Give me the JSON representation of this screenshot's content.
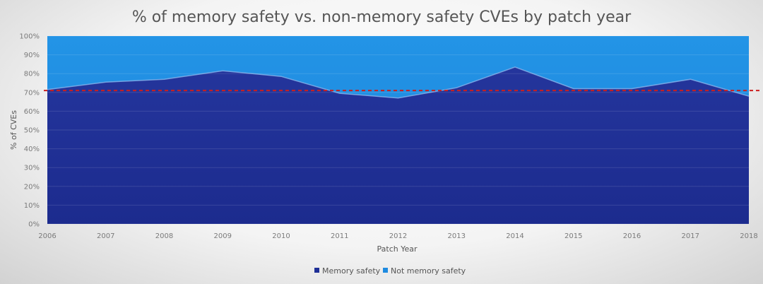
{
  "chart_data": {
    "type": "area",
    "stacked": "percent",
    "title": "% of memory safety vs. non-memory safety CVEs by patch year",
    "xlabel": "Patch Year",
    "ylabel": "% of CVEs",
    "ylim": [
      0,
      100
    ],
    "y_ticks": [
      "0%",
      "10%",
      "20%",
      "30%",
      "40%",
      "50%",
      "60%",
      "70%",
      "80%",
      "90%",
      "100%"
    ],
    "x": [
      "2006",
      "2007",
      "2008",
      "2009",
      "2010",
      "2011",
      "2012",
      "2013",
      "2014",
      "2015",
      "2016",
      "2017",
      "2018"
    ],
    "series": [
      {
        "name": "Memory safety",
        "color": "#1f2f96",
        "values": [
          71.5,
          75.5,
          77,
          81.5,
          78.5,
          69.5,
          67,
          72.5,
          83.5,
          72,
          72,
          77,
          68
        ]
      },
      {
        "name": "Not memory safety",
        "color": "#1f8be0",
        "values": [
          28.5,
          24.5,
          23,
          18.5,
          21.5,
          30.5,
          33,
          27.5,
          16.5,
          28,
          28,
          23,
          32
        ]
      }
    ],
    "reference_line": {
      "value": 71,
      "style": "dashed",
      "color": "#cc1f1f"
    },
    "grid": true,
    "legend_position": "bottom"
  }
}
